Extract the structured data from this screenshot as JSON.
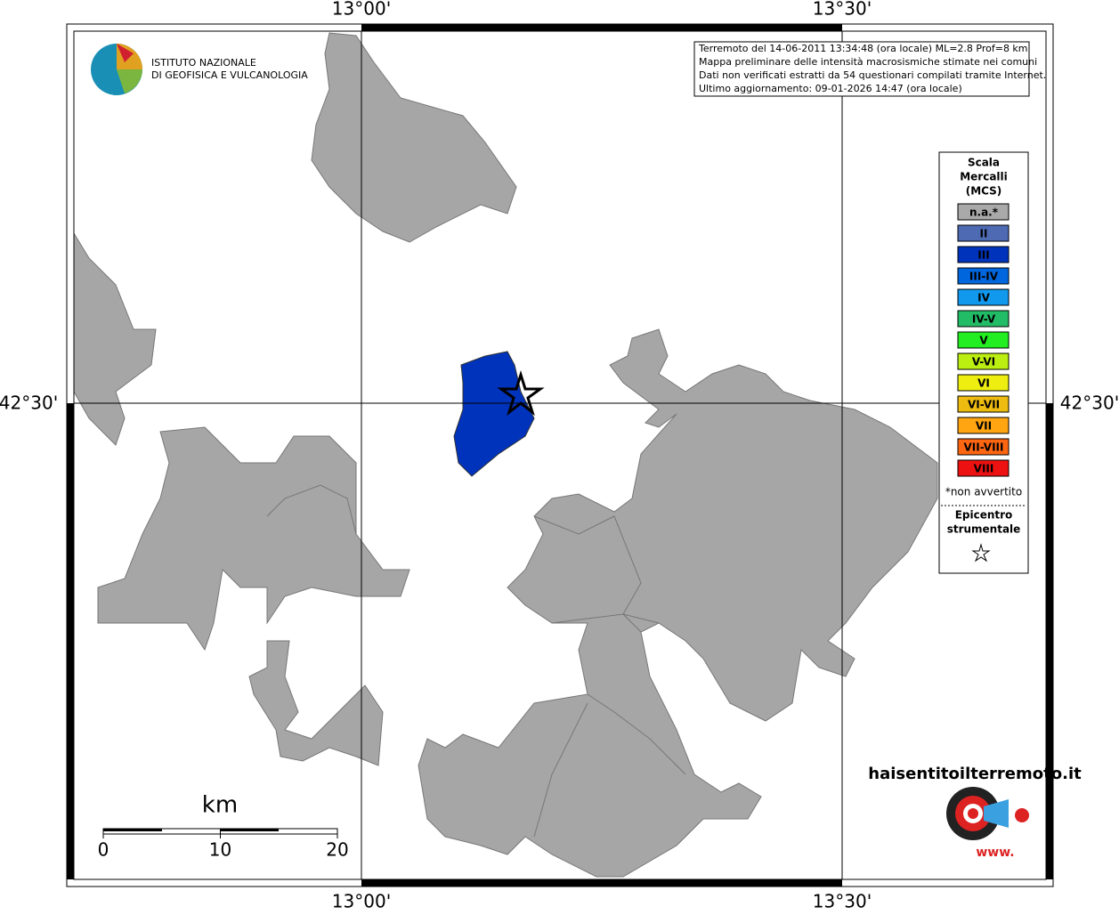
{
  "map": {
    "lon_labels": [
      "13°00'",
      "13°30'"
    ],
    "lat_label": "42°30'",
    "logo": {
      "line1": "ISTITUTO NAZIONALE",
      "line2": "DI GEOFISICA E VULCANOLOGIA"
    },
    "info": [
      "Terremoto del 14-06-2011 13:34:48 (ora locale) ML=2.8 Prof=8 km",
      "Mappa preliminare delle intensità macrosismiche stimate nei comuni",
      "Dati non verificati estratti da 54 questionari compilati tramite Internet.",
      "Ultimo aggiornamento: 09-01-2026 14:47 (ora locale)"
    ],
    "legend": {
      "title": [
        "Scala",
        "Mercalli",
        "(MCS)"
      ],
      "items": [
        {
          "label": "n.a.*",
          "color": "#a9a9a9"
        },
        {
          "label": "II",
          "color": "#4d6ab3"
        },
        {
          "label": "III",
          "color": "#0033bb"
        },
        {
          "label": "III-IV",
          "color": "#0066dd"
        },
        {
          "label": "IV",
          "color": "#1199ee"
        },
        {
          "label": "IV-V",
          "color": "#22bb66"
        },
        {
          "label": "V",
          "color": "#22ee22"
        },
        {
          "label": "V-VI",
          "color": "#bbee11"
        },
        {
          "label": "VI",
          "color": "#eeee11"
        },
        {
          "label": "VI-VII",
          "color": "#eebb11"
        },
        {
          "label": "VII",
          "color": "#ffa511"
        },
        {
          "label": "VII-VIII",
          "color": "#ff6611"
        },
        {
          "label": "VIII",
          "color": "#ee1111"
        }
      ],
      "note": "*non avvertito",
      "epicenter": [
        "Epicentro",
        "strumentale"
      ]
    },
    "scale": {
      "unit": "km",
      "ticks": [
        0,
        10,
        20
      ]
    },
    "site": "haisentitoilterremoto.it",
    "site_prefix": "www."
  }
}
